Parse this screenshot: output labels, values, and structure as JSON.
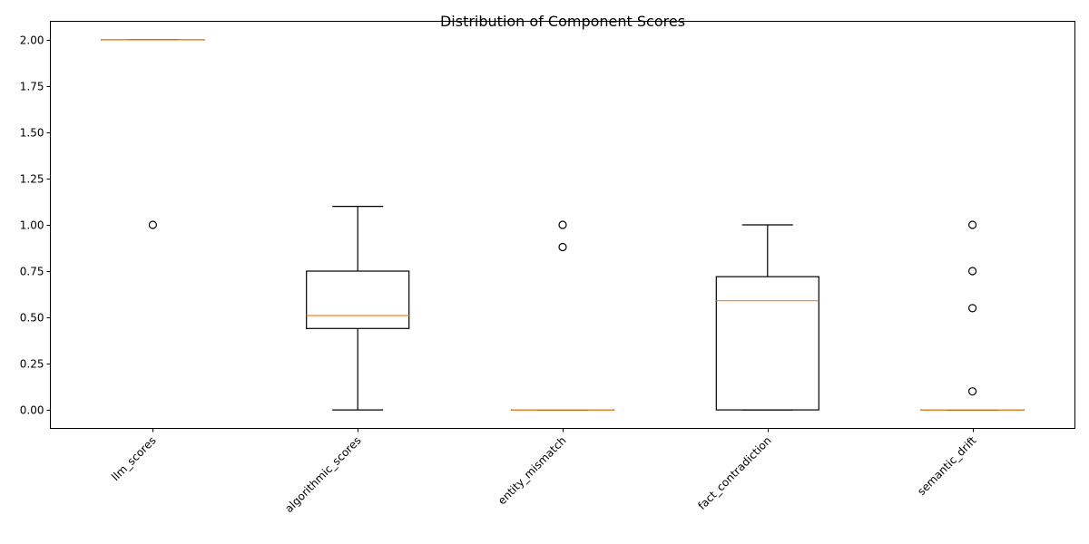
{
  "chart_data": {
    "type": "box",
    "title": "Distribution of Component Scores",
    "xlabel": "",
    "ylabel": "",
    "ylim": [
      -0.1,
      2.1
    ],
    "yticks": [
      0.0,
      0.25,
      0.5,
      0.75,
      1.0,
      1.25,
      1.5,
      1.75,
      2.0
    ],
    "ytick_labels": [
      "0.00",
      "0.25",
      "0.50",
      "0.75",
      "1.00",
      "1.25",
      "1.50",
      "1.75",
      "2.00"
    ],
    "grid": false,
    "legend": "none",
    "colors": {
      "box": "#000000",
      "median": "#ff7f0e",
      "flier": "#000000"
    },
    "categories": [
      "llm_scores",
      "algorithmic_scores",
      "entity_mismatch",
      "fact_contradiction",
      "semantic_drift"
    ],
    "boxes": [
      {
        "category": "llm_scores",
        "whisker_low": 2.0,
        "q1": 2.0,
        "median": 2.0,
        "q3": 2.0,
        "whisker_high": 2.0,
        "outliers": [
          1.0
        ]
      },
      {
        "category": "algorithmic_scores",
        "whisker_low": 0.0,
        "q1": 0.44,
        "median": 0.51,
        "q3": 0.75,
        "whisker_high": 1.1,
        "outliers": []
      },
      {
        "category": "entity_mismatch",
        "whisker_low": 0.0,
        "q1": 0.0,
        "median": 0.0,
        "q3": 0.0,
        "whisker_high": 0.0,
        "outliers": [
          1.0,
          0.88
        ]
      },
      {
        "category": "fact_contradiction",
        "whisker_low": 0.0,
        "q1": 0.0,
        "median": 0.59,
        "q3": 0.72,
        "whisker_high": 1.0,
        "outliers": []
      },
      {
        "category": "semantic_drift",
        "whisker_low": 0.0,
        "q1": 0.0,
        "median": 0.0,
        "q3": 0.0,
        "whisker_high": 0.0,
        "outliers": [
          1.0,
          0.75,
          0.55,
          0.1
        ]
      }
    ]
  }
}
